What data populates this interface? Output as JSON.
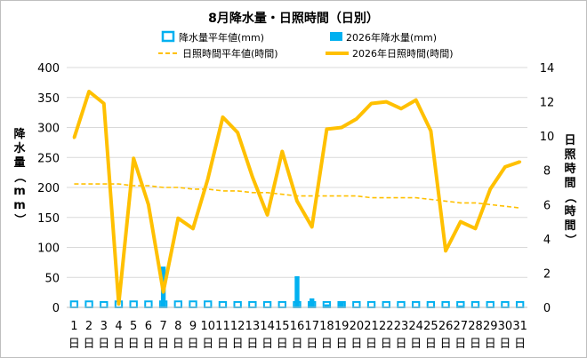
{
  "chart_data": {
    "type": "bar",
    "title": "8月降水量・日照時間（日別）",
    "ylabel": "降水量（mm）",
    "y2label": "日照時間（時間）",
    "ylim": [
      0,
      400
    ],
    "y2lim": [
      0,
      14
    ],
    "yticks": [
      "0",
      "50",
      "100",
      "150",
      "200",
      "250",
      "300",
      "350",
      "400"
    ],
    "y2ticks": [
      "0",
      "2",
      "4",
      "6",
      "8",
      "10",
      "12",
      "14"
    ],
    "xticks": [
      "1",
      "2",
      "3",
      "4",
      "5",
      "6",
      "7",
      "8",
      "9",
      "10",
      "11",
      "12",
      "13",
      "14",
      "15",
      "16",
      "17",
      "18",
      "19",
      "20",
      "21",
      "22",
      "23",
      "24",
      "25",
      "26",
      "27",
      "28",
      "29",
      "30",
      "31"
    ],
    "xtick_suffix": "日",
    "legend": [
      "降水量平年値(mm)",
      "2026年降水量(mm)",
      "日照時間平年値(時間)",
      "2026年日照時間(時間)"
    ],
    "series": [
      {
        "name": "降水量平年値(mm)",
        "kind": "bar-outline",
        "axis": "left",
        "color": "#00b0f0",
        "values": [
          10,
          10,
          9,
          10,
          10,
          10,
          10,
          10,
          10,
          10,
          9,
          9,
          9,
          9,
          9,
          9,
          9,
          9,
          9,
          9,
          9,
          9,
          9,
          9,
          9,
          9,
          9,
          9,
          9,
          9,
          9
        ]
      },
      {
        "name": "2026年降水量(mm)",
        "kind": "bar",
        "axis": "left",
        "color": "#00b0f0",
        "values": [
          0,
          0,
          0,
          0,
          0,
          0,
          68,
          0,
          0,
          0,
          0,
          0,
          0,
          0,
          0,
          52,
          15,
          5,
          10,
          0,
          0,
          0,
          0,
          0,
          0,
          0,
          3,
          0,
          0,
          0,
          0
        ]
      },
      {
        "name": "日照時間平年値(時間)",
        "kind": "line-dashed",
        "axis": "right",
        "color": "#ffc000",
        "values": [
          7.2,
          7.2,
          7.2,
          7.2,
          7.1,
          7.1,
          7.0,
          7.0,
          6.9,
          6.9,
          6.8,
          6.8,
          6.7,
          6.7,
          6.6,
          6.5,
          6.5,
          6.5,
          6.5,
          6.5,
          6.4,
          6.4,
          6.4,
          6.4,
          6.3,
          6.2,
          6.1,
          6.1,
          6.0,
          5.9,
          5.8
        ]
      },
      {
        "name": "2026年日照時間(時間)",
        "kind": "line",
        "axis": "right",
        "color": "#ffc000",
        "values": [
          9.9,
          12.6,
          11.9,
          0.2,
          8.7,
          6.0,
          0.9,
          5.2,
          4.6,
          7.5,
          11.1,
          10.2,
          7.6,
          5.4,
          9.1,
          6.2,
          4.7,
          10.4,
          10.5,
          11.0,
          11.9,
          12.0,
          11.6,
          12.1,
          10.3,
          3.3,
          5.0,
          4.6,
          6.9,
          8.2,
          8.5
        ]
      }
    ],
    "grid": true,
    "legend_position": "top"
  }
}
